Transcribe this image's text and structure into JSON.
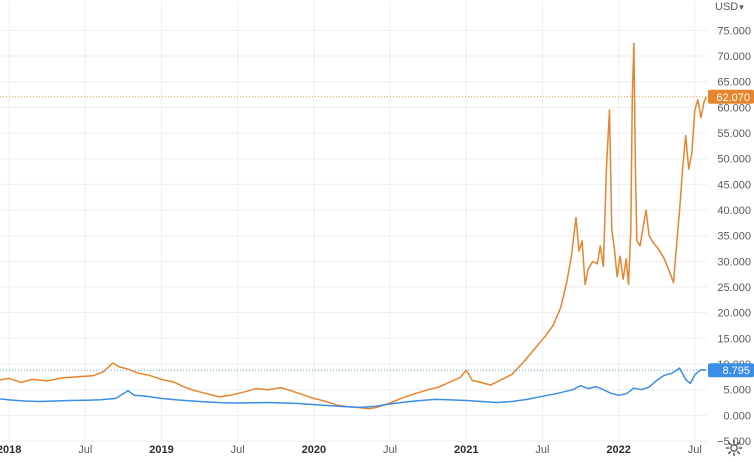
{
  "header": {
    "currency_label": "USD",
    "currency_chevron": "▾"
  },
  "settings": {
    "icon": "gear-icon"
  },
  "colors": {
    "orange": "#e8842c",
    "blue": "#3b8ee6",
    "grid": "#eeeeee",
    "axis_text": "#555a60"
  },
  "chart_data": {
    "type": "line",
    "title": "",
    "xlabel": "",
    "ylabel": "",
    "ylim": [
      -5000,
      78000
    ],
    "grid": true,
    "y_ticks": [
      -5000,
      0,
      5000,
      10000,
      15000,
      20000,
      25000,
      30000,
      35000,
      40000,
      45000,
      50000,
      55000,
      60000,
      65000,
      70000,
      75000
    ],
    "y_tick_labels": [
      "−5.000",
      "0.000",
      "5.000",
      "10.000",
      "15.000",
      "20.000",
      "25.000",
      "30.000",
      "35.000",
      "40.000",
      "45.000",
      "50.000",
      "55.000",
      "60.000",
      "65.000",
      "70.000",
      "75.000"
    ],
    "x_range": [
      2017.94,
      2022.58
    ],
    "x_ticks": [
      {
        "x": 2018.0,
        "label": "2018",
        "major": true
      },
      {
        "x": 2018.5,
        "label": "Jul",
        "major": false
      },
      {
        "x": 2019.0,
        "label": "2019",
        "major": true
      },
      {
        "x": 2019.5,
        "label": "Jul",
        "major": false
      },
      {
        "x": 2020.0,
        "label": "2020",
        "major": true
      },
      {
        "x": 2020.5,
        "label": "Jul",
        "major": false
      },
      {
        "x": 2021.0,
        "label": "2021",
        "major": true
      },
      {
        "x": 2021.5,
        "label": "Jul",
        "major": false
      },
      {
        "x": 2022.0,
        "label": "2022",
        "major": true
      },
      {
        "x": 2022.5,
        "label": "Jul",
        "major": false
      }
    ],
    "series": [
      {
        "color": "#e8842c",
        "last_value_label": "62.070",
        "points": [
          [
            2017.94,
            6900
          ],
          [
            2018.0,
            7200
          ],
          [
            2018.08,
            6400
          ],
          [
            2018.15,
            7000
          ],
          [
            2018.25,
            6700
          ],
          [
            2018.35,
            7300
          ],
          [
            2018.45,
            7500
          ],
          [
            2018.55,
            7700
          ],
          [
            2018.62,
            8500
          ],
          [
            2018.68,
            10200
          ],
          [
            2018.72,
            9500
          ],
          [
            2018.78,
            9000
          ],
          [
            2018.85,
            8200
          ],
          [
            2018.92,
            7800
          ],
          [
            2019.0,
            7000
          ],
          [
            2019.08,
            6500
          ],
          [
            2019.15,
            5500
          ],
          [
            2019.22,
            4800
          ],
          [
            2019.3,
            4200
          ],
          [
            2019.38,
            3600
          ],
          [
            2019.45,
            3900
          ],
          [
            2019.55,
            4600
          ],
          [
            2019.62,
            5200
          ],
          [
            2019.7,
            5000
          ],
          [
            2019.78,
            5400
          ],
          [
            2019.85,
            4800
          ],
          [
            2019.92,
            4100
          ],
          [
            2020.0,
            3300
          ],
          [
            2020.08,
            2700
          ],
          [
            2020.15,
            2000
          ],
          [
            2020.22,
            1700
          ],
          [
            2020.3,
            1500
          ],
          [
            2020.36,
            1300
          ],
          [
            2020.42,
            1600
          ],
          [
            2020.5,
            2400
          ],
          [
            2020.58,
            3400
          ],
          [
            2020.66,
            4200
          ],
          [
            2020.75,
            5000
          ],
          [
            2020.82,
            5500
          ],
          [
            2020.9,
            6600
          ],
          [
            2020.96,
            7400
          ],
          [
            2021.0,
            8800
          ],
          [
            2021.04,
            6800
          ],
          [
            2021.1,
            6400
          ],
          [
            2021.16,
            5900
          ],
          [
            2021.22,
            6800
          ],
          [
            2021.3,
            8000
          ],
          [
            2021.38,
            10500
          ],
          [
            2021.45,
            13000
          ],
          [
            2021.52,
            15500
          ],
          [
            2021.57,
            17500
          ],
          [
            2021.62,
            21000
          ],
          [
            2021.66,
            26000
          ],
          [
            2021.69,
            31000
          ],
          [
            2021.72,
            38500
          ],
          [
            2021.74,
            32000
          ],
          [
            2021.76,
            34000
          ],
          [
            2021.78,
            25500
          ],
          [
            2021.8,
            28500
          ],
          [
            2021.83,
            30000
          ],
          [
            2021.86,
            29500
          ],
          [
            2021.88,
            33000
          ],
          [
            2021.9,
            29000
          ],
          [
            2021.92,
            48000
          ],
          [
            2021.94,
            59500
          ],
          [
            2021.955,
            36000
          ],
          [
            2021.97,
            33000
          ],
          [
            2021.99,
            27000
          ],
          [
            2022.01,
            31000
          ],
          [
            2022.03,
            26500
          ],
          [
            2022.05,
            30500
          ],
          [
            2022.065,
            25500
          ],
          [
            2022.08,
            36000
          ],
          [
            2022.09,
            62000
          ],
          [
            2022.1,
            72500
          ],
          [
            2022.11,
            48000
          ],
          [
            2022.12,
            34000
          ],
          [
            2022.14,
            33000
          ],
          [
            2022.16,
            36500
          ],
          [
            2022.18,
            40000
          ],
          [
            2022.2,
            35000
          ],
          [
            2022.23,
            33500
          ],
          [
            2022.26,
            32500
          ],
          [
            2022.3,
            30500
          ],
          [
            2022.34,
            27500
          ],
          [
            2022.36,
            25800
          ],
          [
            2022.38,
            33000
          ],
          [
            2022.4,
            40000
          ],
          [
            2022.42,
            48000
          ],
          [
            2022.44,
            54500
          ],
          [
            2022.46,
            48000
          ],
          [
            2022.48,
            51000
          ],
          [
            2022.5,
            59500
          ],
          [
            2022.52,
            61500
          ],
          [
            2022.54,
            58000
          ],
          [
            2022.56,
            61000
          ],
          [
            2022.575,
            62070
          ]
        ]
      },
      {
        "color": "#3b8ee6",
        "last_value_label": "8.795",
        "points": [
          [
            2017.94,
            3200
          ],
          [
            2018.0,
            3000
          ],
          [
            2018.1,
            2800
          ],
          [
            2018.2,
            2700
          ],
          [
            2018.3,
            2800
          ],
          [
            2018.4,
            2900
          ],
          [
            2018.5,
            2950
          ],
          [
            2018.6,
            3050
          ],
          [
            2018.7,
            3300
          ],
          [
            2018.78,
            4800
          ],
          [
            2018.82,
            3900
          ],
          [
            2018.9,
            3700
          ],
          [
            2019.0,
            3300
          ],
          [
            2019.1,
            3000
          ],
          [
            2019.2,
            2800
          ],
          [
            2019.3,
            2600
          ],
          [
            2019.4,
            2450
          ],
          [
            2019.5,
            2400
          ],
          [
            2019.6,
            2450
          ],
          [
            2019.7,
            2500
          ],
          [
            2019.8,
            2400
          ],
          [
            2019.9,
            2300
          ],
          [
            2020.0,
            2100
          ],
          [
            2020.1,
            1900
          ],
          [
            2020.2,
            1700
          ],
          [
            2020.3,
            1550
          ],
          [
            2020.4,
            1750
          ],
          [
            2020.5,
            2200
          ],
          [
            2020.6,
            2600
          ],
          [
            2020.7,
            2900
          ],
          [
            2020.8,
            3100
          ],
          [
            2020.9,
            3000
          ],
          [
            2021.0,
            2900
          ],
          [
            2021.1,
            2700
          ],
          [
            2021.2,
            2500
          ],
          [
            2021.3,
            2700
          ],
          [
            2021.4,
            3100
          ],
          [
            2021.5,
            3700
          ],
          [
            2021.6,
            4300
          ],
          [
            2021.7,
            5000
          ],
          [
            2021.75,
            5800
          ],
          [
            2021.8,
            5200
          ],
          [
            2021.85,
            5600
          ],
          [
            2021.9,
            5000
          ],
          [
            2021.95,
            4300
          ],
          [
            2022.0,
            3900
          ],
          [
            2022.05,
            4200
          ],
          [
            2022.1,
            5300
          ],
          [
            2022.15,
            5000
          ],
          [
            2022.2,
            5500
          ],
          [
            2022.25,
            6800
          ],
          [
            2022.3,
            7800
          ],
          [
            2022.35,
            8200
          ],
          [
            2022.4,
            9200
          ],
          [
            2022.44,
            7000
          ],
          [
            2022.47,
            6200
          ],
          [
            2022.5,
            7900
          ],
          [
            2022.54,
            8900
          ],
          [
            2022.575,
            8795
          ]
        ]
      }
    ]
  }
}
